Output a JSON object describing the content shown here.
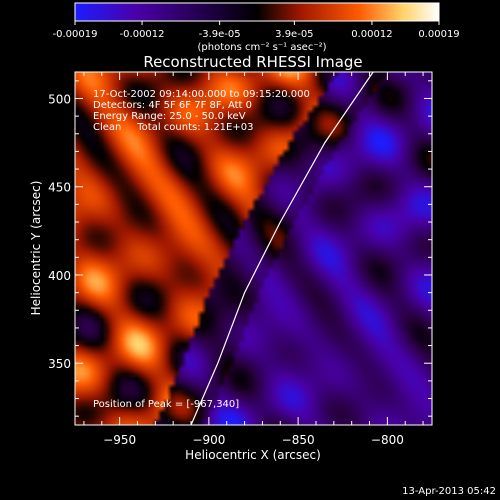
{
  "colorbar": {
    "ticks": [
      "-0.00019",
      "-0.00012",
      "-3.9e-05",
      "3.9e-05",
      "0.00012",
      "0.00019"
    ],
    "tick_values": [
      -0.00019,
      -0.00012,
      -3.9e-05,
      3.9e-05,
      0.00012,
      0.00019
    ],
    "unit_label": "(photons cm⁻² s⁻¹ asec⁻²)",
    "colors": [
      "#1d1dff",
      "#4a00a8",
      "#000000",
      "#a01800",
      "#ff5a00",
      "#ffd26a",
      "#ffffff"
    ]
  },
  "info": {
    "line1": "17-Oct-2002 09:14:00.000 to 09:15:20.000",
    "line2": "Detectors: 4F 5F 6F 7F 8F, Att 0",
    "line3": "Energy Range: 25.0 - 50.0 keV",
    "line4": "Clean     Total counts: 1.21E+03",
    "peak": "Position of Peak = [-967,340]"
  },
  "footer": {
    "timestamp": "13-Apr-2013 05:42"
  },
  "chart_data": {
    "type": "heatmap",
    "title": "Reconstructed RHESSI Image",
    "xlabel": "Heliocentric X (arcsec)",
    "ylabel": "Heliocentric Y (arcsec)",
    "xlim": [
      -975,
      -775
    ],
    "ylim": [
      315,
      515
    ],
    "x_ticks": [
      -950,
      -900,
      -850,
      -800
    ],
    "y_ticks": [
      350,
      400,
      450,
      500
    ],
    "x_tick_labels": [
      "−950",
      "−900",
      "−850",
      "−800"
    ],
    "y_tick_labels": [
      "350",
      "400",
      "450",
      "500"
    ],
    "peak": [
      -967,
      340
    ],
    "limb_points": [
      [
        -910,
        315
      ],
      [
        -895,
        350
      ],
      [
        -880,
        390
      ],
      [
        -860,
        430
      ],
      [
        -835,
        475
      ],
      [
        -808,
        515
      ]
    ]
  }
}
